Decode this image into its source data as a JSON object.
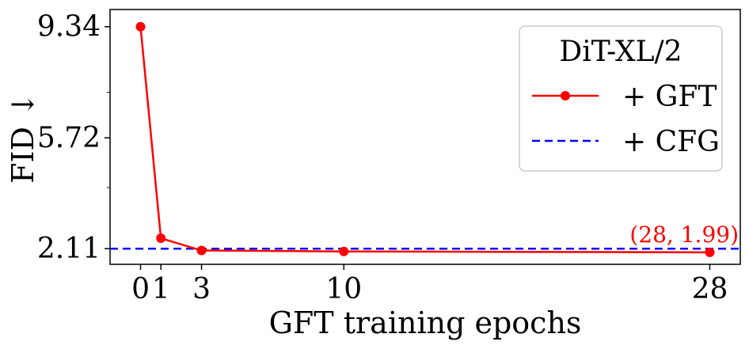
{
  "chart_data": {
    "type": "line",
    "xlabel": "GFT training epochs",
    "ylabel": "FID ↓",
    "x_ticks": [
      0,
      1,
      3,
      10,
      28
    ],
    "x_tick_labels": [
      "0",
      "1",
      "3",
      "10",
      "28"
    ],
    "y_ticks": [
      {
        "value": 9.34,
        "label": "9.34",
        "color": "#000000"
      },
      {
        "value": 5.72,
        "label": "5.72",
        "color": "#000000"
      },
      {
        "value": 2.11,
        "label": "2.11",
        "color": "#0000ff"
      }
    ],
    "ylim": [
      1.6,
      9.9
    ],
    "xlim": [
      -1.5,
      29.5
    ],
    "series": [
      {
        "name": "+ GFT",
        "color": "#ff0000",
        "style": "solid-with-markers",
        "x": [
          0,
          1,
          3,
          10,
          28
        ],
        "y": [
          9.34,
          2.45,
          2.05,
          2.02,
          1.99
        ]
      }
    ],
    "reference_line": {
      "name": "+ CFG",
      "color": "#0000ff",
      "style": "dashed",
      "y": 2.11
    },
    "legend": {
      "title": "DiT-XL/2",
      "placement": "top-right",
      "entries": [
        "+ GFT",
        "+ CFG"
      ]
    },
    "annotation": {
      "text": "(28, 1.99)",
      "color": "#ff0000"
    }
  }
}
